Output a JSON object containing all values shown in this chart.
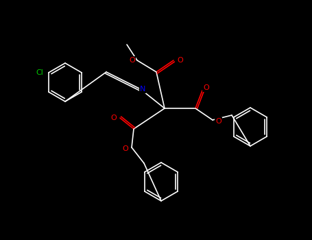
{
  "background_color": "#000000",
  "bond_color": "#ffffff",
  "atom_colors": {
    "O": "#ff0000",
    "N": "#0000ff",
    "Cl": "#00cc00",
    "C": "#ffffff"
  },
  "font_size": 7,
  "bond_width": 1.2
}
